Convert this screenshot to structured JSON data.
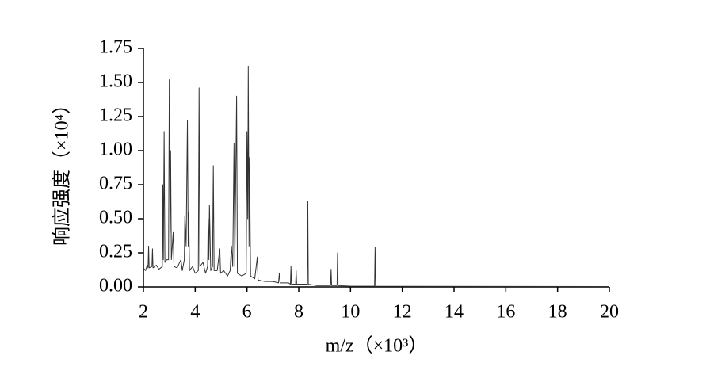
{
  "chart_data": {
    "type": "line",
    "xlabel": "m/z（×10³）",
    "ylabel": "响应强度（×10⁴）",
    "xlim": [
      2,
      20
    ],
    "xticks": [
      2,
      4,
      6,
      8,
      10,
      12,
      14,
      16,
      18,
      20
    ],
    "ylim": [
      0,
      1.75
    ],
    "yticks": [
      {
        "value": 0,
        "label": "0.00"
      },
      0.25,
      {
        "value": 0.5,
        "label": "0.50"
      },
      0.75,
      {
        "value": 1,
        "label": "1.00"
      },
      1.25,
      {
        "value": 1.5,
        "label": "1.50"
      },
      1.75
    ],
    "grid": false,
    "series": [
      {
        "color": "#333333",
        "x": [
          2.0,
          2.08,
          2.15,
          2.18,
          2.2,
          2.22,
          2.33,
          2.35,
          2.37,
          2.5,
          2.6,
          2.73,
          2.75,
          2.77,
          2.8,
          2.83,
          2.9,
          2.97,
          3.0,
          3.03,
          3.05,
          3.08,
          3.15,
          3.18,
          3.3,
          3.45,
          3.5,
          3.58,
          3.6,
          3.65,
          3.7,
          3.73,
          3.75,
          3.78,
          3.9,
          4.0,
          4.12,
          4.15,
          4.18,
          4.3,
          4.4,
          4.48,
          4.5,
          4.53,
          4.55,
          4.6,
          4.67,
          4.7,
          4.73,
          4.85,
          4.95,
          4.98,
          5.1,
          5.25,
          5.35,
          5.4,
          5.45,
          5.5,
          5.53,
          5.6,
          5.63,
          5.8,
          5.97,
          6.0,
          6.03,
          6.05,
          6.08,
          6.1,
          6.14,
          6.3,
          6.4,
          6.43,
          6.7,
          7.0,
          7.22,
          7.25,
          7.28,
          7.6,
          7.68,
          7.7,
          7.72,
          7.88,
          7.9,
          7.92,
          8.1,
          8.33,
          8.35,
          8.37,
          8.7,
          9.23,
          9.25,
          9.27,
          9.48,
          9.5,
          9.52,
          10.0,
          10.93,
          10.95,
          10.97,
          12,
          20
        ],
        "values": [
          0.14,
          0.12,
          0.16,
          0.14,
          0.3,
          0.14,
          0.15,
          0.28,
          0.14,
          0.16,
          0.13,
          0.15,
          0.75,
          0.2,
          1.14,
          0.18,
          0.2,
          0.2,
          1.52,
          0.4,
          1.0,
          0.2,
          0.4,
          0.15,
          0.14,
          0.2,
          0.12,
          0.2,
          0.52,
          0.3,
          1.22,
          0.3,
          0.55,
          0.12,
          0.15,
          0.1,
          0.12,
          1.46,
          0.15,
          0.18,
          0.1,
          0.15,
          0.5,
          0.2,
          0.6,
          0.12,
          0.15,
          0.89,
          0.12,
          0.12,
          0.28,
          0.1,
          0.12,
          0.08,
          0.12,
          0.3,
          0.15,
          1.05,
          0.15,
          1.4,
          0.1,
          0.08,
          0.1,
          1.14,
          0.5,
          1.62,
          0.3,
          0.95,
          0.08,
          0.06,
          0.22,
          0.05,
          0.04,
          0.04,
          0.03,
          0.1,
          0.03,
          0.03,
          0.02,
          0.15,
          0.02,
          0.02,
          0.12,
          0.02,
          0.02,
          0.02,
          0.63,
          0.02,
          0.01,
          0.01,
          0.13,
          0.01,
          0.01,
          0.25,
          0.01,
          0.005,
          0.005,
          0.29,
          0.005,
          0.004,
          0.003
        ]
      }
    ]
  }
}
